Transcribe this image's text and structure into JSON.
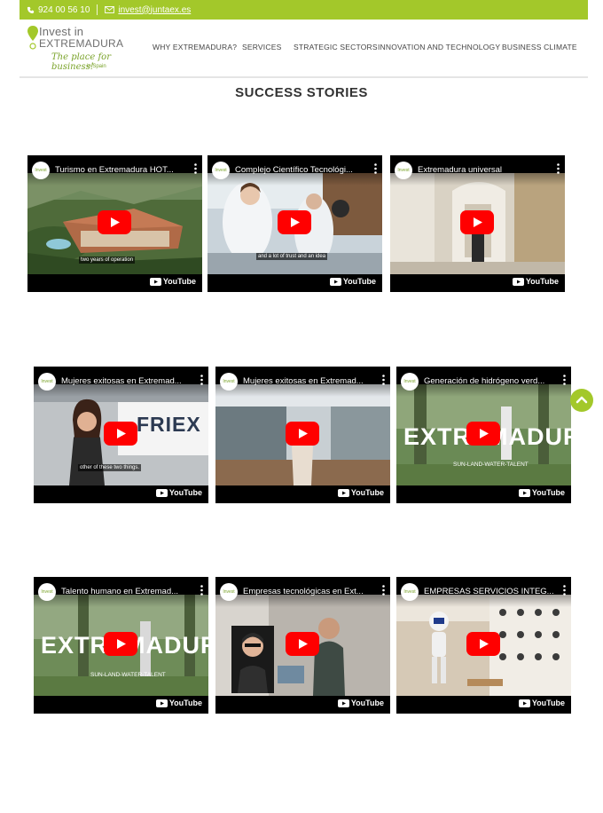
{
  "topbar": {
    "phone": "924 00 56 10",
    "email": "invest@juntaex.es"
  },
  "logo": {
    "line1": "Invest in",
    "line2": "EXTREMADURA",
    "tagline": "The place for business!",
    "subtag": "in Spain"
  },
  "nav": {
    "items": [
      "WHY EXTREMADURA?",
      "SERVICES",
      "STRATEGIC SECTORS",
      "INNOVATION AND TECHNOLOGY",
      "BUSINESS CLIMATE"
    ]
  },
  "page_title": "SUCCESS STORIES",
  "youtube_label": "YouTube",
  "videos": [
    {
      "title": "Turismo en Extremadura HOT...",
      "caption": "two years of operation"
    },
    {
      "title": "Complejo Científico Tecnológi...",
      "caption": "and a lot of trust and an idea"
    },
    {
      "title": "Extremadura universal",
      "caption": ""
    },
    {
      "title": "Mujeres exitosas en Extremad...",
      "caption": "other of these two things.",
      "overlay": "FRIEX"
    },
    {
      "title": "Mujeres exitosas en Extremad...",
      "caption": ""
    },
    {
      "title": "Generación de hidrógeno verd...",
      "caption": "",
      "overlay": "EXTREMADURA",
      "banner": "SUN-LAND-WATER-TALENT"
    },
    {
      "title": "Talento humano en Extremad...",
      "caption": "",
      "overlay": "EXTREMADURA",
      "banner": "SUN-LAND-WATER-TALENT"
    },
    {
      "title": "Empresas tecnológicas en Ext...",
      "caption": ""
    },
    {
      "title": "EMPRESAS SERVICIOS INTEG...",
      "caption": ""
    }
  ],
  "colors": {
    "brand_green": "#a3c82a",
    "youtube_red": "#ff0000"
  }
}
